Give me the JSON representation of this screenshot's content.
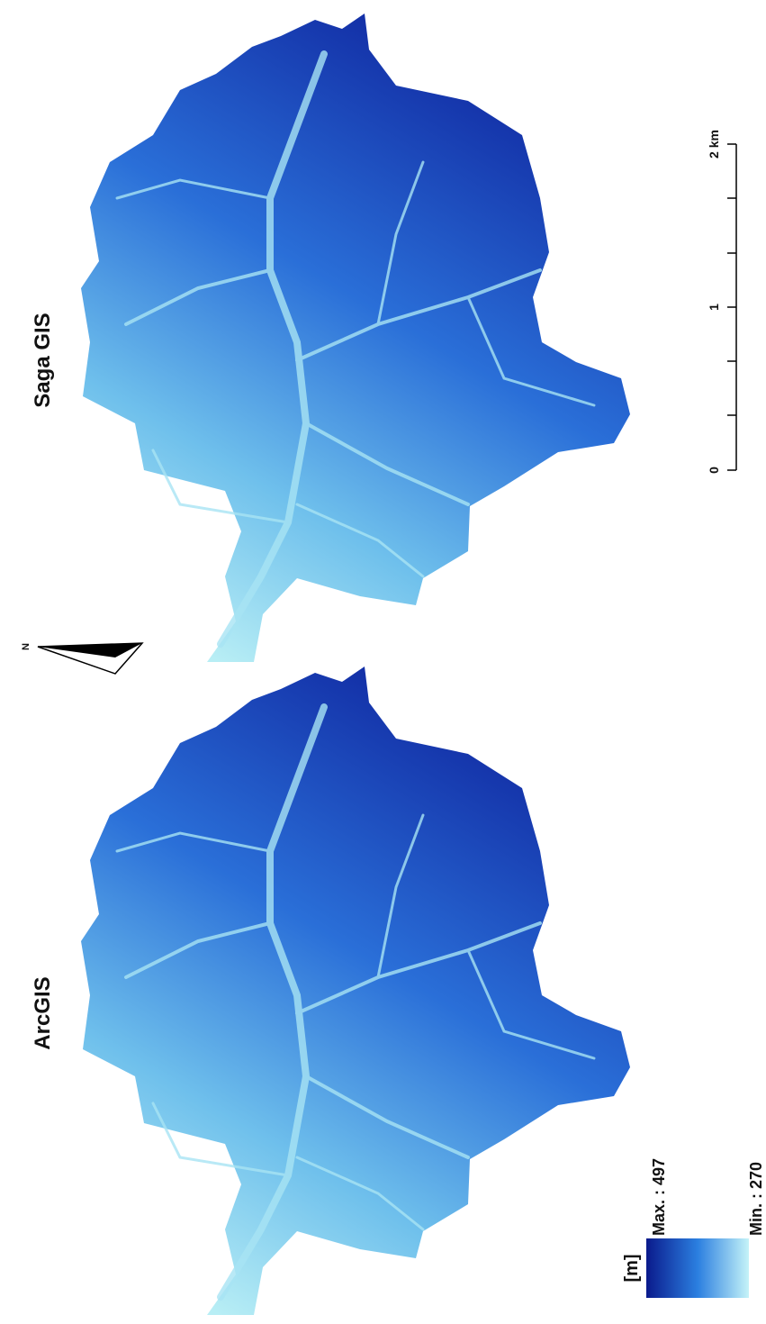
{
  "maps": [
    {
      "title": "Saga GIS"
    },
    {
      "title": "ArcGIS"
    }
  ],
  "north_arrow": {
    "label": "N"
  },
  "scale_bar": {
    "labels": [
      "0",
      "1",
      "2 km"
    ]
  },
  "legend": {
    "unit": "[m]",
    "max_label": "Max. : 497",
    "min_label": "Min. : 270"
  }
}
